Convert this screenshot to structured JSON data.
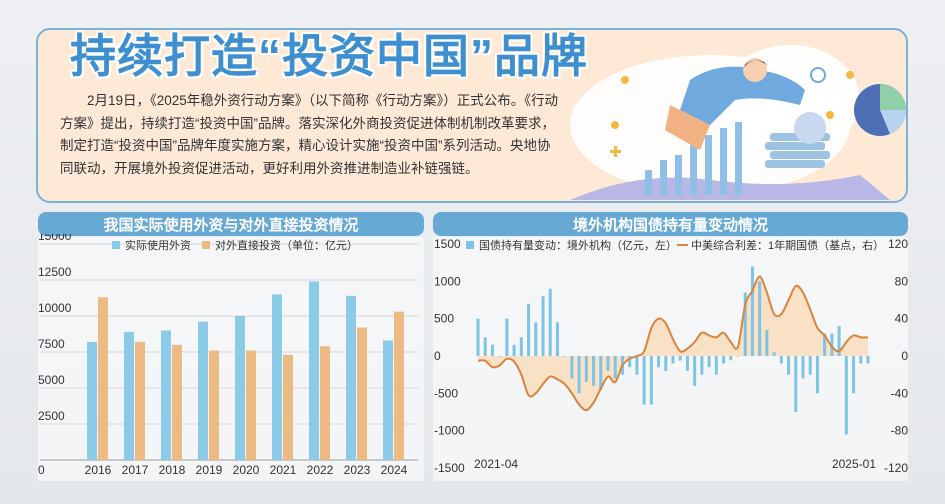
{
  "headline": "持续打造“投资中国”品牌",
  "intro": "2月19日，《2025年稳外资行动方案》（以下简称《行动方案》）正式公布。《行动方案》提出，持续打造“投资中国”品牌。落实深化外商投资促进体制机制改革要求，制定打造“投资中国”品牌年度实施方案，精心设计实施“投资中国”系列活动。央地协同联动，开展境外投资促进活动，更好利用外资推进制造业补链强链。",
  "colors": {
    "blue_bar": "#8ccbe8",
    "orange_bar": "#ecba82",
    "spread_line": "#d8843f",
    "title_bg": "#67a9d5"
  },
  "chart_data": [
    {
      "type": "bar",
      "title": "我国实际使用外资与对外直接投资情况",
      "categories": [
        "2016",
        "2017",
        "2018",
        "2019",
        "2020",
        "2021",
        "2022",
        "2023",
        "2024"
      ],
      "series": [
        {
          "name": "实际使用外资",
          "values": [
            8200,
            8900,
            9000,
            9600,
            10000,
            11500,
            12400,
            11400,
            8300
          ]
        },
        {
          "name": "对外直接投资（单位：亿元）",
          "values": [
            11300,
            8200,
            8000,
            7600,
            7600,
            7300,
            7900,
            9200,
            10300
          ]
        }
      ],
      "yticks": [
        "0",
        "2500",
        "5000",
        "7500",
        "10000",
        "12500",
        "15000"
      ],
      "ylim": [
        0,
        15000
      ],
      "grid": true,
      "legend": "top"
    },
    {
      "type": "bar+line",
      "title": "境外机构国债持有量变动情况",
      "x_start_label": "2021-04",
      "x_end_label": "2025-01",
      "series": [
        {
          "name": "国债持有量变动：境外机构（亿元，左）",
          "axis": "left",
          "values": [
            500,
            250,
            150,
            0,
            500,
            150,
            250,
            700,
            450,
            800,
            900,
            450,
            0,
            -300,
            -500,
            -350,
            -400,
            -450,
            -200,
            -300,
            -250,
            -150,
            -250,
            -650,
            -650,
            -150,
            -200,
            -100,
            -60,
            -200,
            -400,
            -250,
            -150,
            -250,
            -100,
            -50,
            0,
            850,
            1200,
            1000,
            350,
            50,
            -100,
            -250,
            -750,
            -300,
            -250,
            -500,
            300,
            300,
            400,
            -1050,
            -500,
            -100,
            -100
          ]
        },
        {
          "name": "中美综合利差：1年期国债（基点，右）",
          "axis": "right",
          "values": [
            -5,
            -5,
            -12,
            -10,
            -3,
            -6,
            -20,
            -42,
            -40,
            -30,
            -22,
            -25,
            -30,
            -40,
            -52,
            -58,
            -50,
            -35,
            -22,
            -28,
            -10,
            -3,
            0,
            5,
            30,
            40,
            35,
            18,
            5,
            8,
            15,
            25,
            22,
            20,
            25,
            15,
            10,
            55,
            70,
            85,
            68,
            45,
            45,
            60,
            75,
            68,
            50,
            30,
            22,
            10,
            5,
            15,
            22,
            20,
            20
          ]
        }
      ],
      "left_ticks": [
        "-1500",
        "-1000",
        "-500",
        "0",
        "500",
        "1000",
        "1500"
      ],
      "right_ticks": [
        "-120",
        "-80",
        "-40",
        "0",
        "40",
        "80",
        "120"
      ],
      "ylim_left": [
        -1500,
        1500
      ],
      "ylim_right": [
        -120,
        120
      ],
      "legend": "top"
    }
  ]
}
